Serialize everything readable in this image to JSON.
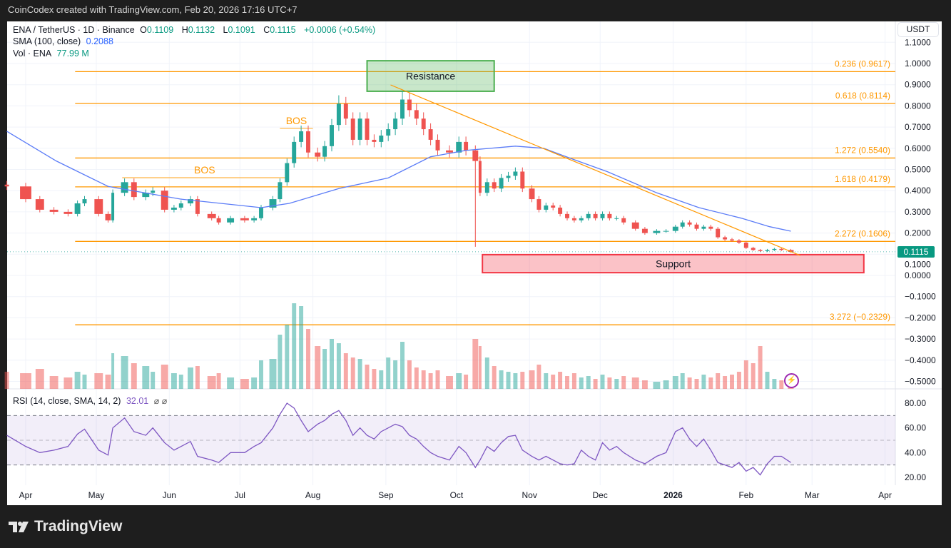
{
  "credit": "CoinCodex created with TradingView.com, Feb 20, 2026 17:16 UTC+7",
  "legend": {
    "symbol": "ENA / TetherUS · 1D · Binance",
    "o_label": "O",
    "o": "0.1109",
    "h_label": "H",
    "h": "0.1132",
    "l_label": "L",
    "l": "0.1091",
    "c_label": "C",
    "c": "0.1115",
    "change": "+0.0006 (+0.54%)",
    "sma_label": "SMA (100, close)",
    "sma_value": "0.2088",
    "vol_label": "Vol · ENA",
    "vol_value": "77.99 M",
    "rsi_label": "RSI (14, close, SMA, 14, 2)",
    "rsi_value": "32.01",
    "rsi_icons": "⌀ ⌀"
  },
  "currency_button": "USDT",
  "last_price_tag": "0.1115",
  "footer_logo": "TradingView",
  "icons": {
    "logo": "tradingview-logo-icon",
    "bolt": "lightning-icon"
  },
  "colors": {
    "up": "#26a69a",
    "down": "#ef5350",
    "sma": "#5b7cf7",
    "fib": "#ff9800",
    "rsi": "#7e57c2",
    "resistance": "#4caf50",
    "support": "#f23645"
  },
  "chart_data": {
    "type": "candlestick",
    "price_axis": {
      "unit": "USDT",
      "range": [
        -0.5,
        1.1
      ],
      "ticks": [
        "1.1000",
        "1.0000",
        "0.9000",
        "0.8000",
        "0.7000",
        "0.6000",
        "0.5000",
        "0.4000",
        "0.3000",
        "0.2000",
        "0.1000",
        "0.0000",
        "−0.1000",
        "−0.2000",
        "−0.3000",
        "−0.4000",
        "−0.5000"
      ]
    },
    "time_axis": {
      "ticks": [
        [
          "2025-04-01",
          "Apr"
        ],
        [
          "2025-05-01",
          "May"
        ],
        [
          "2025-06-01",
          "Jun"
        ],
        [
          "2025-07-01",
          "Jul"
        ],
        [
          "2025-08-01",
          "Aug"
        ],
        [
          "2025-09-01",
          "Sep"
        ],
        [
          "2025-10-01",
          "Oct"
        ],
        [
          "2025-11-01",
          "Nov"
        ],
        [
          "2025-12-01",
          "Dec"
        ],
        [
          "2026-01-01",
          "2026"
        ],
        [
          "2026-02-01",
          "Feb"
        ],
        [
          "2026-03-01",
          "Mar"
        ],
        [
          "2026-04-01",
          "Apr"
        ]
      ]
    },
    "grid": true,
    "series_fields": [
      "date",
      "close",
      "volume_M",
      "rsi"
    ],
    "points": [
      [
        "2025-03-24",
        0.42,
        120,
        54
      ],
      [
        "2025-04-01",
        0.36,
        110,
        45
      ],
      [
        "2025-04-07",
        0.31,
        140,
        40
      ],
      [
        "2025-04-13",
        0.3,
        90,
        42
      ],
      [
        "2025-04-19",
        0.29,
        80,
        45
      ],
      [
        "2025-04-23",
        0.34,
        120,
        55
      ],
      [
        "2025-04-26",
        0.36,
        100,
        59
      ],
      [
        "2025-05-02",
        0.29,
        110,
        42
      ],
      [
        "2025-05-06",
        0.26,
        100,
        38
      ],
      [
        "2025-05-08",
        0.39,
        250,
        60
      ],
      [
        "2025-05-13",
        0.44,
        230,
        68
      ],
      [
        "2025-05-17",
        0.37,
        180,
        57
      ],
      [
        "2025-05-22",
        0.39,
        160,
        54
      ],
      [
        "2025-05-25",
        0.4,
        120,
        60
      ],
      [
        "2025-05-30",
        0.31,
        170,
        48
      ],
      [
        "2025-06-03",
        0.32,
        110,
        42
      ],
      [
        "2025-06-06",
        0.34,
        100,
        45
      ],
      [
        "2025-06-10",
        0.36,
        150,
        49
      ],
      [
        "2025-06-13",
        0.29,
        160,
        37
      ],
      [
        "2025-06-19",
        0.27,
        90,
        34
      ],
      [
        "2025-06-22",
        0.25,
        110,
        32
      ],
      [
        "2025-06-27",
        0.27,
        80,
        40
      ],
      [
        "2025-07-03",
        0.26,
        70,
        40
      ],
      [
        "2025-07-07",
        0.27,
        80,
        45
      ],
      [
        "2025-07-10",
        0.32,
        200,
        48
      ],
      [
        "2025-07-15",
        0.36,
        210,
        60
      ],
      [
        "2025-07-18",
        0.44,
        380,
        71
      ],
      [
        "2025-07-21",
        0.53,
        450,
        80
      ],
      [
        "2025-07-24",
        0.63,
        600,
        76
      ],
      [
        "2025-07-27",
        0.68,
        580,
        66
      ],
      [
        "2025-07-30",
        0.58,
        420,
        57
      ],
      [
        "2025-08-03",
        0.56,
        300,
        63
      ],
      [
        "2025-08-06",
        0.61,
        280,
        66
      ],
      [
        "2025-08-09",
        0.71,
        350,
        71
      ],
      [
        "2025-08-12",
        0.81,
        320,
        74
      ],
      [
        "2025-08-15",
        0.74,
        250,
        66
      ],
      [
        "2025-08-18",
        0.64,
        220,
        54
      ],
      [
        "2025-08-21",
        0.74,
        210,
        60
      ],
      [
        "2025-08-24",
        0.64,
        170,
        54
      ],
      [
        "2025-08-27",
        0.63,
        140,
        51
      ],
      [
        "2025-08-30",
        0.66,
        130,
        57
      ],
      [
        "2025-09-02",
        0.69,
        220,
        60
      ],
      [
        "2025-09-05",
        0.74,
        200,
        63
      ],
      [
        "2025-09-08",
        0.83,
        330,
        61
      ],
      [
        "2025-09-11",
        0.78,
        200,
        54
      ],
      [
        "2025-09-14",
        0.74,
        150,
        51
      ],
      [
        "2025-09-17",
        0.69,
        130,
        45
      ],
      [
        "2025-09-20",
        0.64,
        110,
        40
      ],
      [
        "2025-09-23",
        0.59,
        130,
        37
      ],
      [
        "2025-09-28",
        0.58,
        90,
        34
      ],
      [
        "2025-10-02",
        0.63,
        110,
        45
      ],
      [
        "2025-10-05",
        0.59,
        100,
        40
      ],
      [
        "2025-10-09",
        0.54,
        350,
        28
      ],
      [
        "2025-10-11",
        0.39,
        300,
        34
      ],
      [
        "2025-10-14",
        0.44,
        220,
        45
      ],
      [
        "2025-10-17",
        0.41,
        160,
        41
      ],
      [
        "2025-10-20",
        0.46,
        130,
        48
      ],
      [
        "2025-10-23",
        0.47,
        120,
        53
      ],
      [
        "2025-10-26",
        0.49,
        110,
        54
      ],
      [
        "2025-10-29",
        0.41,
        120,
        42
      ],
      [
        "2025-11-02",
        0.36,
        130,
        37
      ],
      [
        "2025-11-05",
        0.31,
        170,
        34
      ],
      [
        "2025-11-08",
        0.33,
        110,
        37
      ],
      [
        "2025-11-11",
        0.32,
        100,
        34
      ],
      [
        "2025-11-14",
        0.29,
        120,
        31
      ],
      [
        "2025-11-17",
        0.27,
        90,
        30
      ],
      [
        "2025-11-20",
        0.26,
        110,
        31
      ],
      [
        "2025-11-23",
        0.27,
        80,
        42
      ],
      [
        "2025-11-26",
        0.29,
        90,
        37
      ],
      [
        "2025-11-29",
        0.27,
        70,
        34
      ],
      [
        "2025-12-02",
        0.29,
        100,
        48
      ],
      [
        "2025-12-05",
        0.27,
        80,
        42
      ],
      [
        "2025-12-08",
        0.27,
        70,
        45
      ],
      [
        "2025-12-11",
        0.25,
        90,
        40
      ],
      [
        "2025-12-16",
        0.22,
        80,
        34
      ],
      [
        "2025-12-20",
        0.2,
        60,
        31
      ],
      [
        "2025-12-25",
        0.21,
        50,
        37
      ],
      [
        "2025-12-29",
        0.21,
        60,
        40
      ],
      [
        "2026-01-02",
        0.23,
        90,
        57
      ],
      [
        "2026-01-05",
        0.25,
        110,
        60
      ],
      [
        "2026-01-08",
        0.24,
        80,
        51
      ],
      [
        "2026-01-11",
        0.22,
        70,
        45
      ],
      [
        "2026-01-14",
        0.23,
        100,
        51
      ],
      [
        "2026-01-17",
        0.22,
        80,
        42
      ],
      [
        "2026-01-20",
        0.18,
        110,
        32
      ],
      [
        "2026-01-23",
        0.17,
        90,
        30
      ],
      [
        "2026-01-26",
        0.165,
        100,
        28
      ],
      [
        "2026-01-29",
        0.155,
        120,
        32
      ],
      [
        "2026-02-01",
        0.13,
        200,
        25
      ],
      [
        "2026-02-04",
        0.12,
        180,
        28
      ],
      [
        "2026-02-07",
        0.115,
        300,
        22
      ],
      [
        "2026-02-10",
        0.12,
        120,
        31
      ],
      [
        "2026-02-13",
        0.125,
        70,
        37
      ],
      [
        "2026-02-16",
        0.12,
        60,
        37
      ],
      [
        "2026-02-20",
        0.1115,
        78,
        32
      ]
    ],
    "wick_extremes": [
      [
        "2025-10-09",
        "low",
        0.135
      ],
      [
        "2025-08-12",
        "high",
        0.85
      ],
      [
        "2025-09-08",
        "high",
        0.87
      ]
    ],
    "sma_100": [
      [
        "2025-03-24",
        0.68
      ],
      [
        "2025-04-14",
        0.54
      ],
      [
        "2025-05-06",
        0.42
      ],
      [
        "2025-06-06",
        0.36
      ],
      [
        "2025-07-10",
        0.32
      ],
      [
        "2025-07-22",
        0.34
      ],
      [
        "2025-08-12",
        0.41
      ],
      [
        "2025-09-02",
        0.46
      ],
      [
        "2025-09-20",
        0.56
      ],
      [
        "2025-10-05",
        0.59
      ],
      [
        "2025-10-26",
        0.61
      ],
      [
        "2025-11-07",
        0.6
      ],
      [
        "2025-11-19",
        0.55
      ],
      [
        "2025-12-04",
        0.49
      ],
      [
        "2025-12-25",
        0.39
      ],
      [
        "2026-01-12",
        0.32
      ],
      [
        "2026-01-30",
        0.27
      ],
      [
        "2026-02-11",
        0.23
      ],
      [
        "2026-02-20",
        0.2088
      ]
    ],
    "rsi_axis": {
      "range": [
        15,
        90
      ],
      "ticks": [
        "80.00",
        "60.00",
        "40.00",
        "20.00"
      ],
      "bands": [
        70,
        50,
        30
      ]
    },
    "fib_levels": [
      {
        "label": "0.236 (0.9617)",
        "price": 0.9617
      },
      {
        "label": "0.618 (0.8114)",
        "price": 0.8114
      },
      {
        "label": "1.272 (0.5540)",
        "price": 0.554
      },
      {
        "label": "1.618 (0.4179)",
        "price": 0.4179
      },
      {
        "label": "2.272 (0.1606)",
        "price": 0.1606
      },
      {
        "label": "3.272 (−0.2329)",
        "price": -0.2329
      }
    ],
    "fib_start": "2025-04-22",
    "zones": [
      {
        "label": "Resistance",
        "from": "2025-08-24",
        "to": "2025-10-17",
        "top": 1.013,
        "bottom": 0.869,
        "kind": "resistance"
      },
      {
        "label": "Support",
        "from": "2025-10-12",
        "to": "2026-03-23",
        "top": 0.098,
        "bottom": 0.013,
        "kind": "support"
      }
    ],
    "trendline": [
      [
        "2025-09-03",
        0.899
      ],
      [
        "2026-02-24",
        0.094
      ]
    ],
    "bos": [
      {
        "label": "BOS",
        "from": "2025-05-12",
        "to": "2025-07-21",
        "price": 0.461
      },
      {
        "label": "BOS",
        "from": "2025-07-18",
        "to": "2025-08-01",
        "price": 0.694
      }
    ]
  }
}
